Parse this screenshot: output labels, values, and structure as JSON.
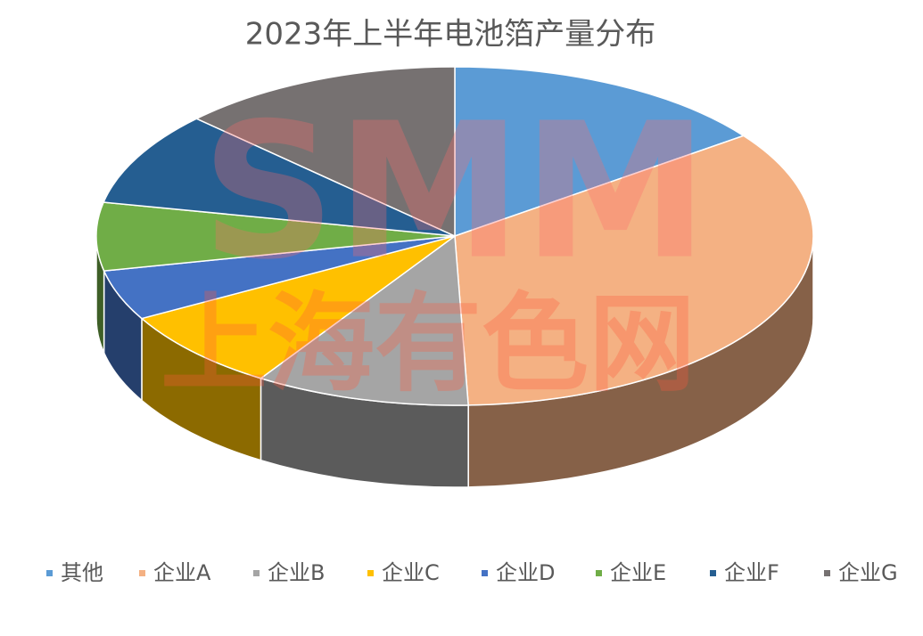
{
  "chart_data": {
    "type": "pie3d",
    "title": "2023年上半年电池箔产量分布",
    "categories": [
      "其他",
      "企业A",
      "企业B",
      "企业C",
      "企业D",
      "企业E",
      "企业F",
      "企业G"
    ],
    "values": [
      14.9,
      34.5,
      9.7,
      7.8,
      4.8,
      6.5,
      9.0,
      12.8
    ],
    "colors": [
      "#5b9bd5",
      "#f4b183",
      "#a5a5a5",
      "#ffc000",
      "#4472c4",
      "#70ad47",
      "#255e91",
      "#767171"
    ],
    "legend": "bottom",
    "watermark": [
      "SMM",
      "上海有色网"
    ]
  }
}
